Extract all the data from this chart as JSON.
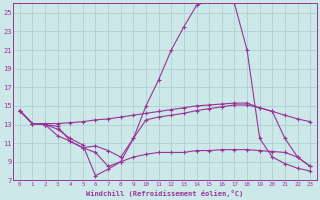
{
  "background_color": "#cce8e8",
  "grid_color": "#aacccc",
  "line_color": "#993399",
  "xlabel": "Windchill (Refroidissement éolien,°C)",
  "xlim": [
    -0.5,
    23.5
  ],
  "ylim": [
    7,
    26
  ],
  "yticks": [
    7,
    9,
    11,
    13,
    15,
    17,
    19,
    21,
    23,
    25
  ],
  "xticks": [
    0,
    1,
    2,
    3,
    4,
    5,
    6,
    7,
    8,
    9,
    10,
    11,
    12,
    13,
    14,
    15,
    16,
    17,
    18,
    19,
    20,
    21,
    22,
    23
  ],
  "line1_x": [
    0,
    1,
    2,
    3,
    4,
    5,
    6,
    7,
    8,
    9,
    10,
    11,
    12,
    13,
    14,
    15,
    16,
    17,
    18,
    19,
    20,
    21,
    22,
    23
  ],
  "line1_y": [
    14.5,
    13.1,
    13.1,
    13.1,
    13.2,
    13.3,
    13.5,
    13.6,
    13.8,
    14.0,
    14.2,
    14.4,
    14.6,
    14.8,
    15.0,
    15.1,
    15.2,
    15.3,
    15.3,
    14.8,
    14.4,
    14.0,
    13.6,
    13.3
  ],
  "line2_x": [
    0,
    1,
    2,
    3,
    4,
    5,
    6,
    7,
    8,
    9,
    10,
    11,
    12,
    13,
    14,
    15,
    16,
    17,
    18,
    19,
    20,
    21,
    22,
    23
  ],
  "line2_y": [
    14.5,
    13.1,
    13.0,
    12.5,
    11.5,
    10.8,
    7.5,
    8.2,
    9.0,
    11.5,
    15.0,
    17.8,
    21.0,
    23.5,
    25.8,
    26.3,
    26.3,
    26.0,
    21.0,
    11.5,
    9.5,
    8.8,
    8.3,
    8.0
  ],
  "line3_x": [
    0,
    1,
    2,
    3,
    4,
    5,
    6,
    7,
    8,
    9,
    10,
    11,
    12,
    13,
    14,
    15,
    16,
    17,
    18,
    19,
    20,
    21,
    22,
    23
  ],
  "line3_y": [
    14.5,
    13.1,
    13.0,
    12.8,
    11.2,
    10.5,
    10.7,
    10.2,
    9.5,
    11.5,
    13.5,
    13.8,
    14.0,
    14.2,
    14.5,
    14.7,
    14.9,
    15.1,
    15.1,
    14.8,
    14.4,
    11.5,
    9.5,
    8.5
  ],
  "line4_x": [
    0,
    1,
    2,
    3,
    4,
    5,
    6,
    7,
    8,
    9,
    10,
    11,
    12,
    13,
    14,
    15,
    16,
    17,
    18,
    19,
    20,
    21,
    22,
    23
  ],
  "line4_y": [
    14.5,
    13.1,
    13.0,
    11.8,
    11.2,
    10.5,
    10.0,
    8.5,
    9.0,
    9.5,
    9.8,
    10.0,
    10.0,
    10.0,
    10.2,
    10.2,
    10.3,
    10.3,
    10.3,
    10.2,
    10.1,
    10.0,
    9.5,
    8.5
  ]
}
